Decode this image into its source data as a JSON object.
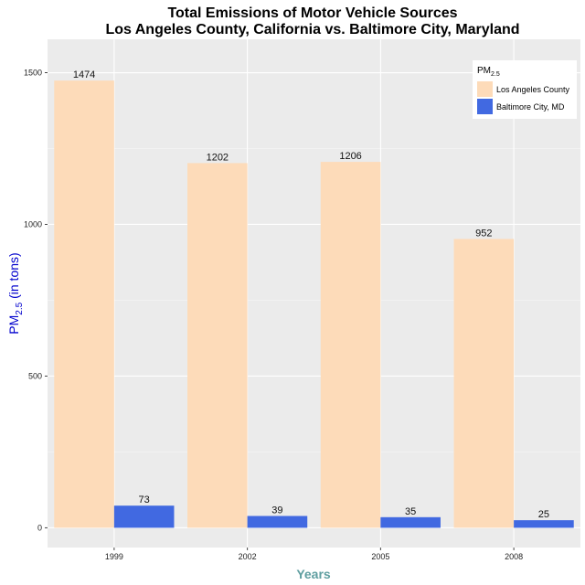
{
  "chart_data": {
    "type": "bar",
    "title_line1": "Total Emissions of Motor Vehicle Sources",
    "title_line2": "Los Angeles County, California vs. Baltimore City, Maryland",
    "xlabel": "Years",
    "ylabel": "PM2.5 (in tons)",
    "ylabel_main": "PM",
    "ylabel_sub": "2.5",
    "ylabel_rest": " (in tons)",
    "categories": [
      "1999",
      "2002",
      "2005",
      "2008"
    ],
    "series": [
      {
        "name": "Los Angeles County",
        "values": [
          1474,
          1202,
          1206,
          952
        ],
        "color": "#FDDBB9"
      },
      {
        "name": "Baltimore City, MD",
        "values": [
          73,
          39,
          35,
          25
        ],
        "color": "#4169E1"
      }
    ],
    "ylim": [
      -65,
      1610
    ],
    "yticks": [
      0,
      500,
      1000,
      1500
    ],
    "legend": {
      "title": "PM2.5",
      "title_main": "PM",
      "title_sub": "2.5",
      "placement": "top-right"
    },
    "grid": true,
    "colors": {
      "panel": "#EBEBEB",
      "grid": "#FFFFFF",
      "xlabel": "#5F9EA0",
      "ylabel": "#0000CD"
    }
  }
}
